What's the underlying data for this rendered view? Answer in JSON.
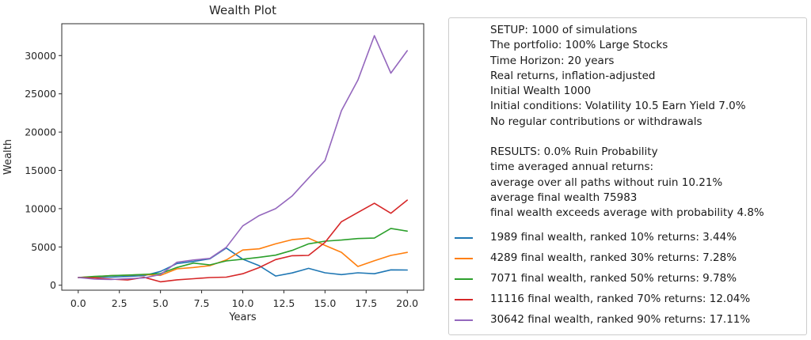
{
  "accent_colors": {
    "blue": "#1f77b4",
    "orange": "#ff7f0e",
    "green": "#2ca02c",
    "red": "#d62728",
    "purple": "#9467bd",
    "axis": "#2b2b2b",
    "legend_border": "#cccccc"
  },
  "info_panel": {
    "setup_lines": [
      "SETUP: 1000 of simulations",
      "The portfolio: 100% Large Stocks",
      "Time Horizon: 20 years",
      "Real returns, inflation-adjusted",
      "Initial Wealth 1000",
      "Initial conditions: Volatility 10.5 Earn Yield 7.0%",
      "No regular contributions or withdrawals"
    ],
    "results_lines": [
      "RESULTS: 0.0% Ruin Probability",
      "time averaged annual returns:",
      "average over all paths without ruin 10.21%",
      "average final wealth 75983",
      "final wealth exceeds average with probability 4.8%"
    ]
  },
  "chart_data": {
    "type": "line",
    "title": "Wealth Plot",
    "xlabel": "Years",
    "ylabel": "Wealth",
    "xlim": [
      -1,
      21
    ],
    "ylim": [
      -650,
      34160
    ],
    "grid": false,
    "legend_position": "outside-right",
    "x_ticks": [
      0,
      2.5,
      5,
      7.5,
      10,
      12.5,
      15,
      17.5,
      20
    ],
    "x_tick_labels": [
      "0.0",
      "2.5",
      "5.0",
      "7.5",
      "10.0",
      "12.5",
      "15.0",
      "17.5",
      "20.0"
    ],
    "y_ticks": [
      0,
      5000,
      10000,
      15000,
      20000,
      25000,
      30000
    ],
    "y_tick_labels": [
      "0",
      "5000",
      "10000",
      "15000",
      "20000",
      "25000",
      "30000"
    ],
    "x": [
      0,
      1,
      2,
      3,
      4,
      5,
      6,
      7,
      8,
      9,
      10,
      11,
      12,
      13,
      14,
      15,
      16,
      17,
      18,
      19,
      20
    ],
    "series": [
      {
        "name": "1989 final wealth, ranked 10% returns: 3.44%",
        "color": "#1f77b4",
        "final_wealth": 1989,
        "rank": "10%",
        "return_pct": "3.44%",
        "values": [
          1000,
          1050,
          1050,
          1150,
          1250,
          1800,
          2830,
          3100,
          3450,
          4860,
          3400,
          2550,
          1200,
          1600,
          2200,
          1620,
          1380,
          1620,
          1500,
          2000,
          1989
        ]
      },
      {
        "name": "4289 final wealth, ranked 30% returns: 7.28%",
        "color": "#ff7f0e",
        "final_wealth": 4289,
        "rank": "30%",
        "return_pct": "7.28%",
        "values": [
          1000,
          1100,
          1250,
          1300,
          1400,
          1280,
          2140,
          2310,
          2550,
          3300,
          4600,
          4750,
          5400,
          5950,
          6150,
          5200,
          4300,
          2450,
          3200,
          3900,
          4289
        ]
      },
      {
        "name": "7071 final wealth, ranked 50% returns: 9.78%",
        "color": "#2ca02c",
        "final_wealth": 7071,
        "rank": "50%",
        "return_pct": "9.78%",
        "values": [
          1000,
          1150,
          1250,
          1320,
          1420,
          1520,
          2310,
          2890,
          2660,
          3170,
          3400,
          3650,
          3930,
          4550,
          5400,
          5750,
          5900,
          6100,
          6160,
          7420,
          7071
        ]
      },
      {
        "name": "11116 final wealth, ranked 70% returns: 12.04%",
        "color": "#d62728",
        "final_wealth": 11116,
        "rank": "70%",
        "return_pct": "12.04%",
        "values": [
          1000,
          950,
          800,
          680,
          1030,
          450,
          700,
          850,
          1000,
          1050,
          1500,
          2300,
          3350,
          3850,
          3900,
          5600,
          8300,
          9500,
          10700,
          9400,
          11116
        ]
      },
      {
        "name": "30642 final wealth, ranked 90% returns: 17.11%",
        "color": "#9467bd",
        "final_wealth": 30642,
        "rank": "90%",
        "return_pct": "17.11%",
        "values": [
          1000,
          800,
          750,
          850,
          950,
          1400,
          3000,
          3300,
          3500,
          4950,
          7750,
          9100,
          10000,
          11650,
          14000,
          16300,
          22800,
          26800,
          32600,
          27700,
          30642
        ]
      }
    ]
  }
}
